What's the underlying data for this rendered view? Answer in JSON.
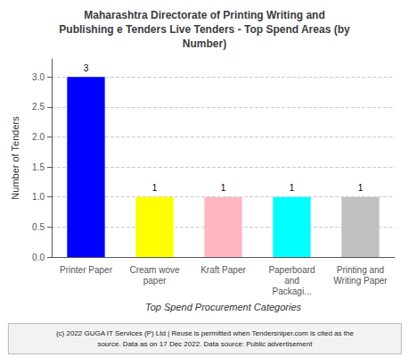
{
  "chart_data": {
    "type": "bar",
    "title": "Maharashtra Directorate of Printing Writing and\nPublishing e Tenders Live Tenders - Top Spend Areas (by\nNumber)",
    "categories": [
      "Printer Paper",
      "Cream wove\npaper",
      "Kraft Paper",
      "Paperboard\nand\nPackagi...",
      "Printing and\nWriting Paper"
    ],
    "values": [
      3,
      1,
      1,
      1,
      1
    ],
    "colors": [
      "#0000FF",
      "#FFFF00",
      "#FFB6C1",
      "#00FFFF",
      "#C0C0C0"
    ],
    "ylabel": "Number of Tenders",
    "xlabel": "Top Spend Procurement Categories",
    "ylim": [
      0,
      3.3
    ],
    "yticks": [
      {
        "value": 0,
        "label": "0.0"
      },
      0.5,
      {
        "value": 1,
        "label": "1.0"
      },
      1.5,
      {
        "value": 2,
        "label": "2.0"
      },
      2.5,
      {
        "value": 3,
        "label": "3.0"
      }
    ],
    "grid": true,
    "data_labels": true,
    "annotations": [
      "(c) 2022 GUGA IT Services (P) Ltd | Reuse is permitted when Tendersniper.com is cited as the\nsource. Data as on 17 Dec 2022. Data source: Public advertisement"
    ]
  }
}
